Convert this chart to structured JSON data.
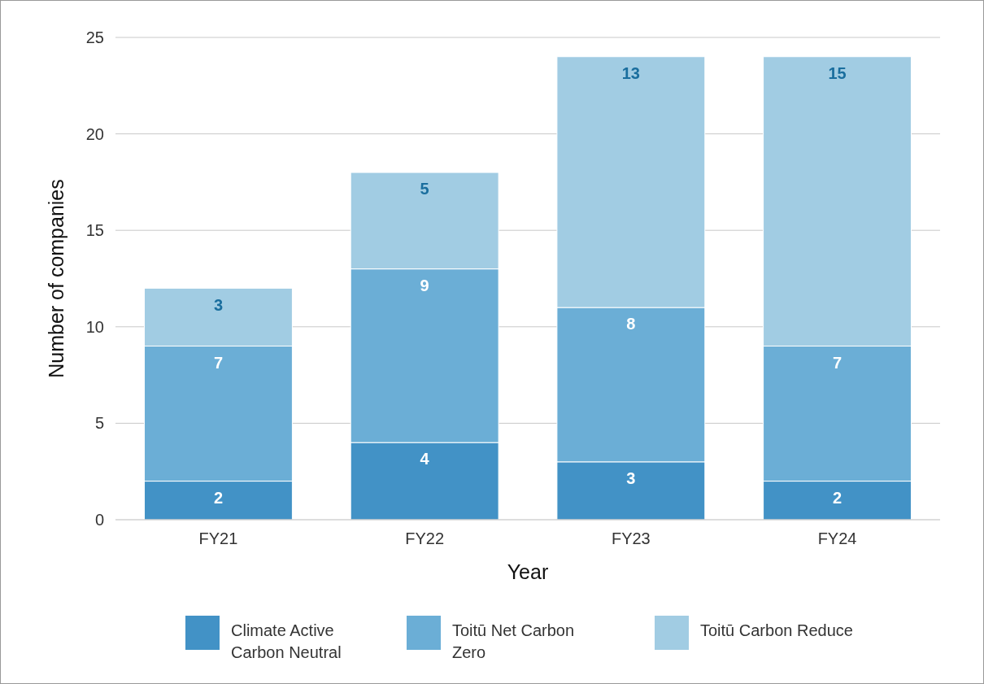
{
  "chart_data": {
    "type": "bar",
    "stacked": true,
    "xlabel": "Year",
    "ylabel": "Number of companies",
    "categories": [
      "FY21",
      "FY22",
      "FY23",
      "FY24"
    ],
    "series": [
      {
        "name": "Climate Active Carbon Neutral",
        "color": "#4292c6",
        "values": [
          2,
          4,
          3,
          2
        ]
      },
      {
        "name": "Toitū Net Carbon Zero",
        "color": "#6baed6",
        "values": [
          7,
          9,
          8,
          7
        ]
      },
      {
        "name": "Toitū Carbon Reduce",
        "color": "#a1cce3",
        "values": [
          3,
          5,
          13,
          15
        ]
      }
    ],
    "ylim": [
      0,
      25
    ],
    "yticks": [
      0,
      5,
      10,
      15,
      20,
      25
    ],
    "grid": "y",
    "legend": "bottom",
    "data_labels": true
  }
}
